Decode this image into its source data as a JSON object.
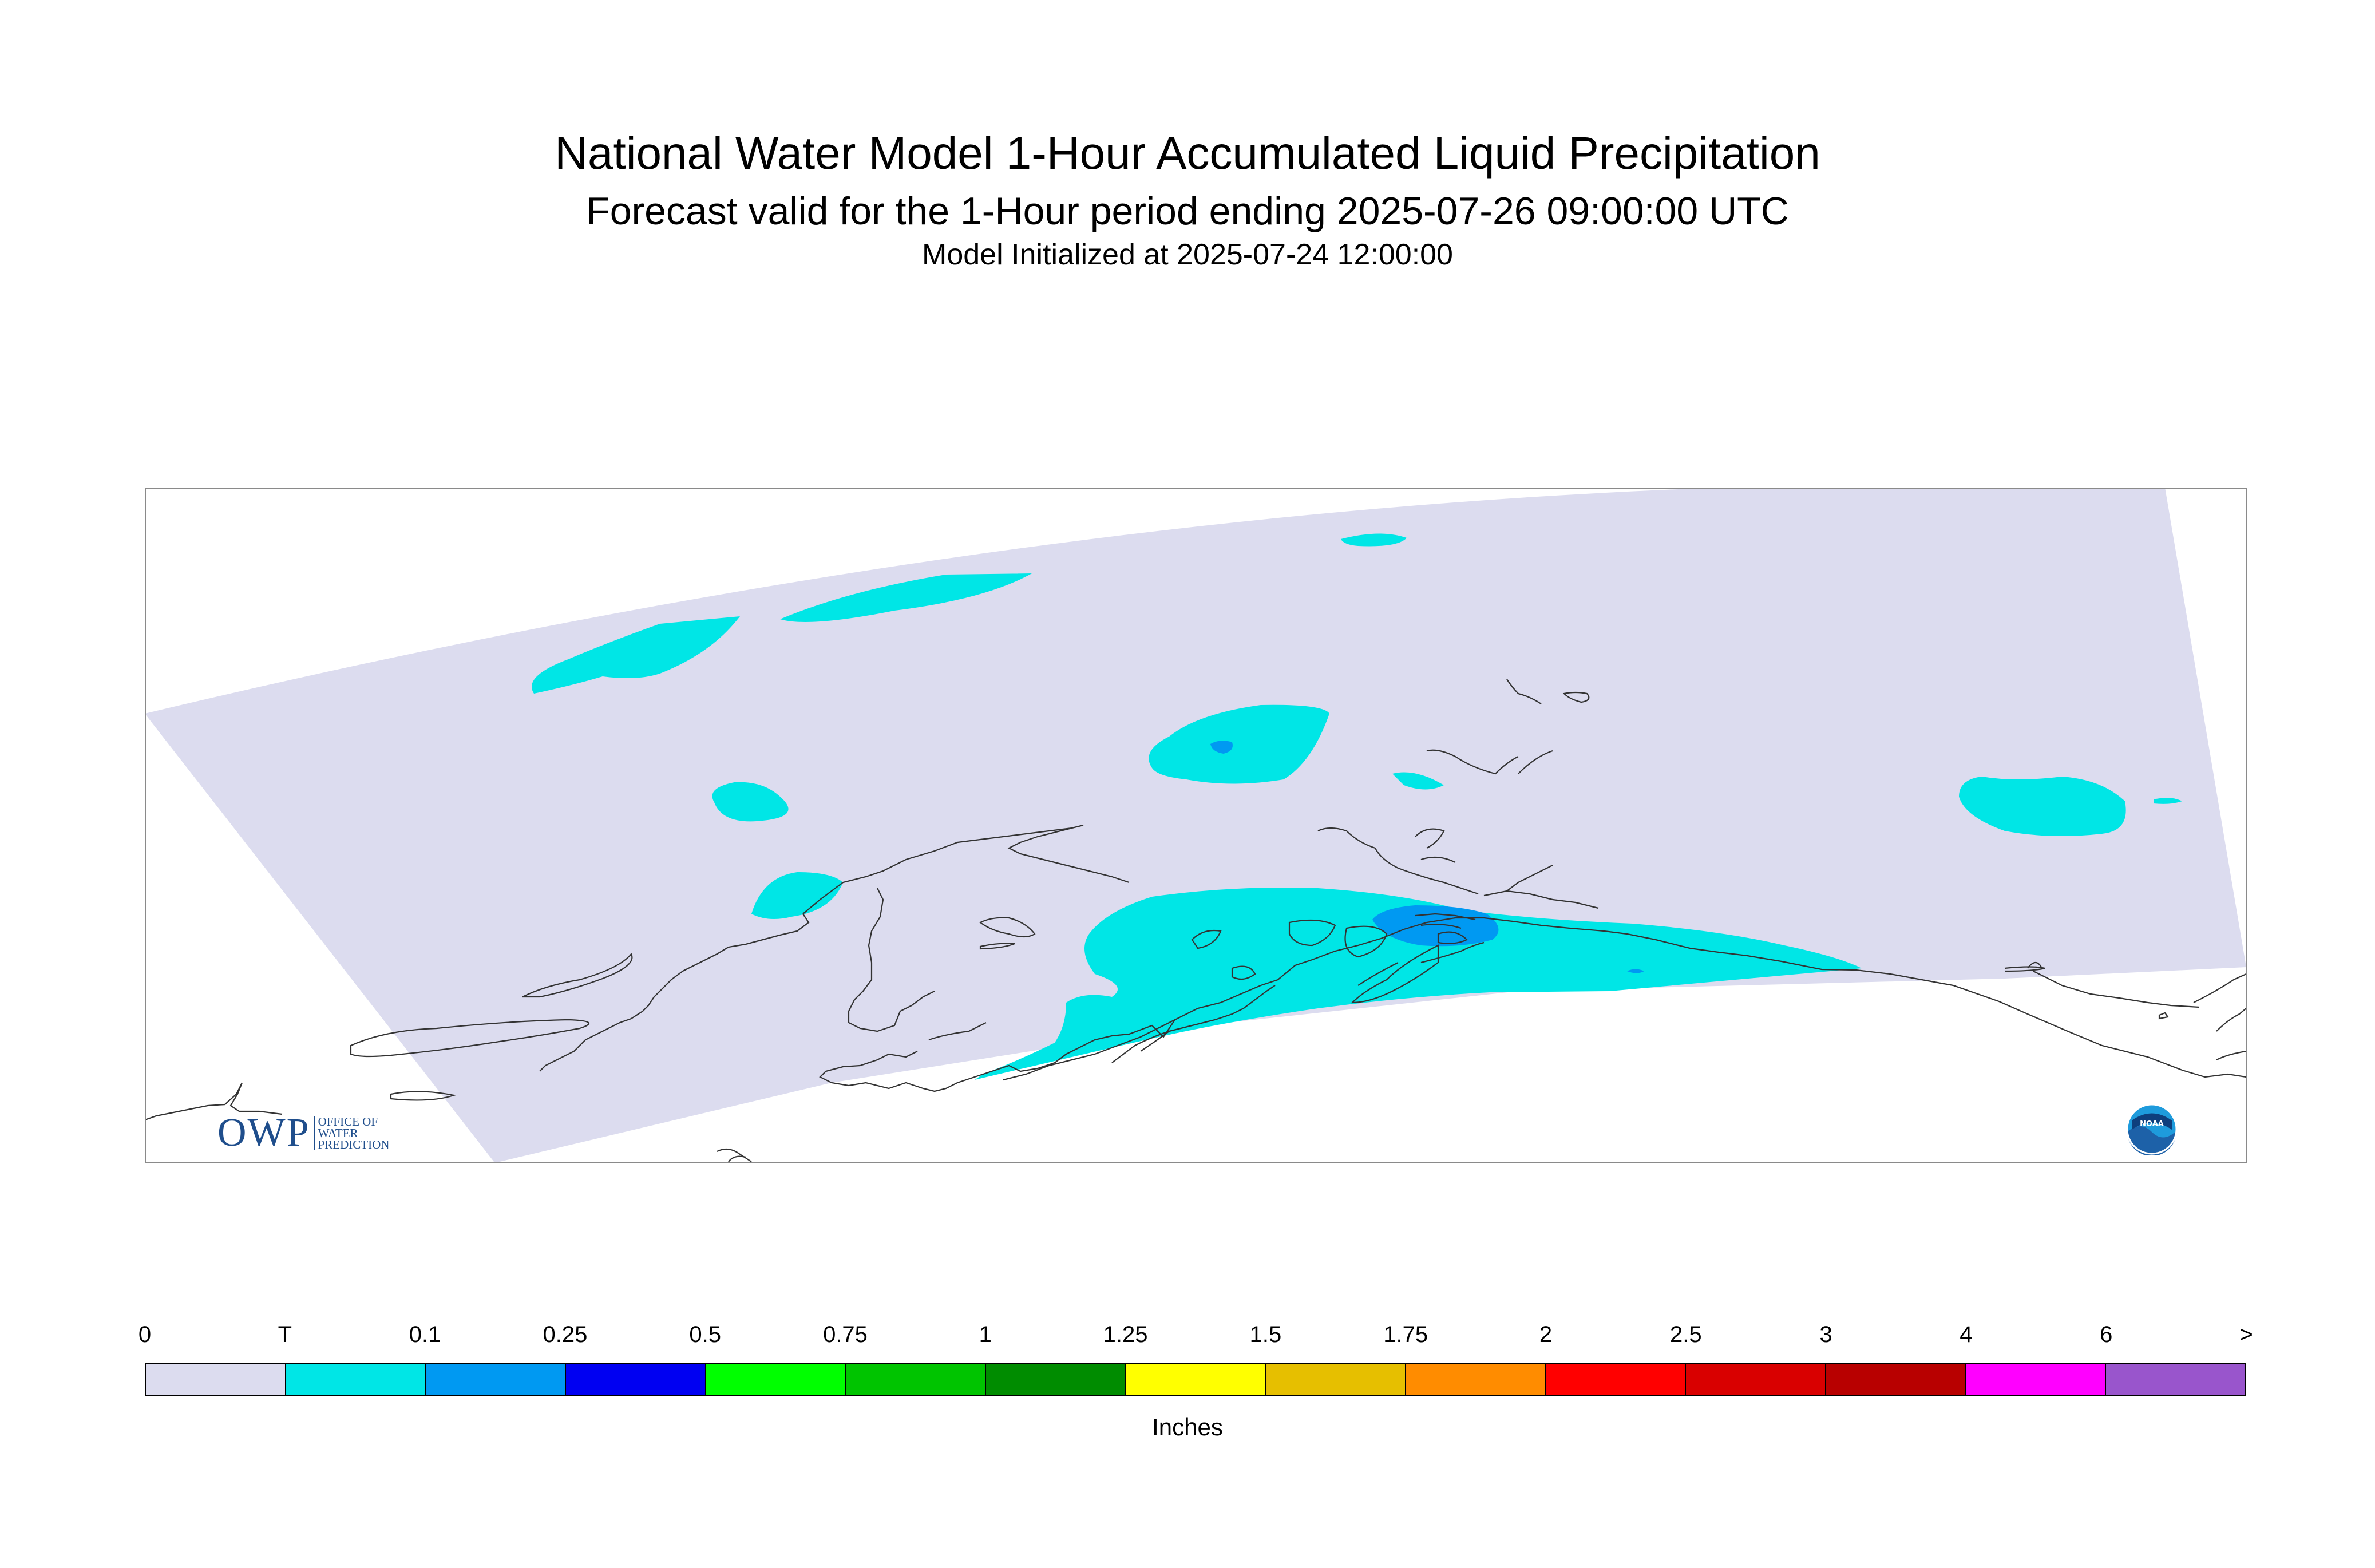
{
  "title": "National Water Model 1-Hour Accumulated Liquid Precipitation",
  "subtitle": "Forecast valid for the 1-Hour period ending 2025-07-26 09:00:00 UTC",
  "initialized": "Model Initialized at 2025-07-24 12:00:00",
  "colorbar": {
    "units": "Inches",
    "labels": [
      "0",
      "T",
      "0.1",
      "0.25",
      "0.5",
      "0.75",
      "1",
      "1.25",
      "1.5",
      "1.75",
      "2",
      "2.5",
      "3",
      "4",
      "6",
      ">"
    ],
    "colors": [
      "#dcdcef",
      "#00e6e6",
      "#0099f2",
      "#0000f2",
      "#00ff00",
      "#00c400",
      "#008c00",
      "#ffff00",
      "#e6bf00",
      "#ff8c00",
      "#ff0000",
      "#d90000",
      "#b80000",
      "#ff00ff",
      "#9955cc"
    ]
  },
  "map": {
    "domain_color": "#dcdcef",
    "coastline_color": "#333333",
    "max_category": "0.1"
  },
  "logos": {
    "owp_mark": "OWP",
    "owp_text_lines": [
      "Office of",
      "Water",
      "Prediction"
    ],
    "noaa": "NOAA"
  }
}
